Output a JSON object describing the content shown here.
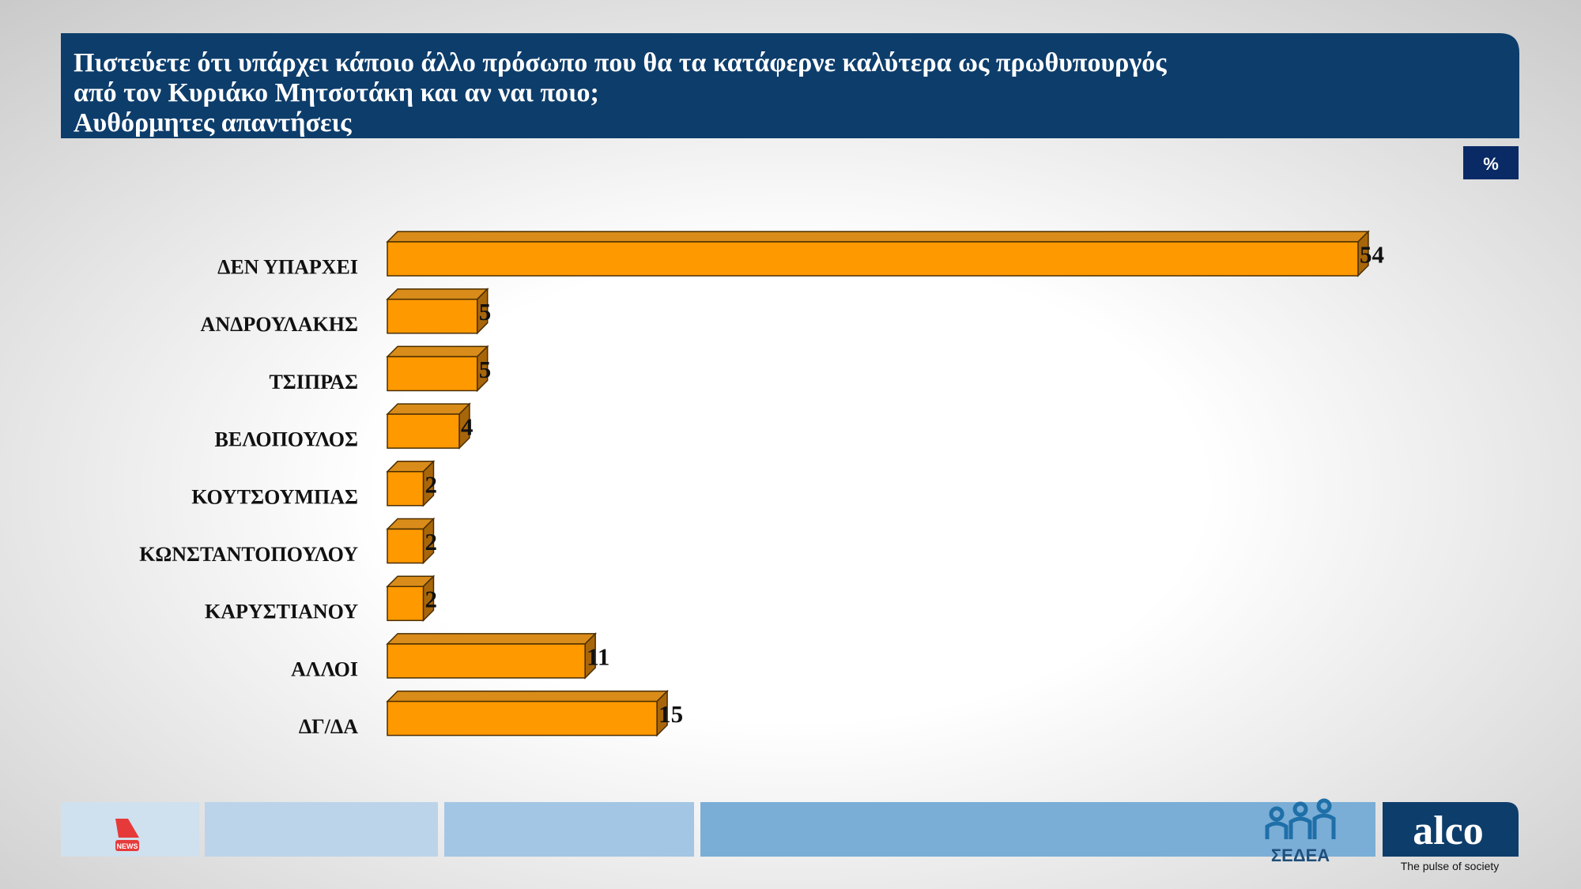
{
  "chart_data": {
    "type": "bar",
    "orientation": "horizontal",
    "title_lines": [
      "Πιστεύετε ότι υπάρχει κάποιο άλλο πρόσωπο που θα τα κατάφερνε καλύτερα ως πρωθυπουργός",
      "από τον Κυριάκο Μητσοτάκη και αν ναι ποιο;",
      "Αυθόρμητες απαντήσεις"
    ],
    "unit_label": "%",
    "categories": [
      "ΔΕΝ ΥΠΑΡΧΕΙ",
      "ΑΝΔΡΟΥΛΑΚΗΣ",
      "ΤΣΙΠΡΑΣ",
      "ΒΕΛΟΠΟΥΛΟΣ",
      "ΚΟΥΤΣΟΥΜΠΑΣ",
      "ΚΩΝΣΤΑΝΤΟΠΟΥΛΟΥ",
      "ΚΑΡΥΣΤΙΑΝΟΥ",
      "ΑΛΛΟΙ",
      "ΔΓ/ΔΑ"
    ],
    "values": [
      54,
      5,
      5,
      4,
      2,
      2,
      2,
      11,
      15
    ],
    "color": "#ff9900"
  },
  "footer": {
    "brand": "alco",
    "tagline": "The pulse of society",
    "partner": "ΣΕΔΕΑ",
    "channel": "NEWS"
  }
}
